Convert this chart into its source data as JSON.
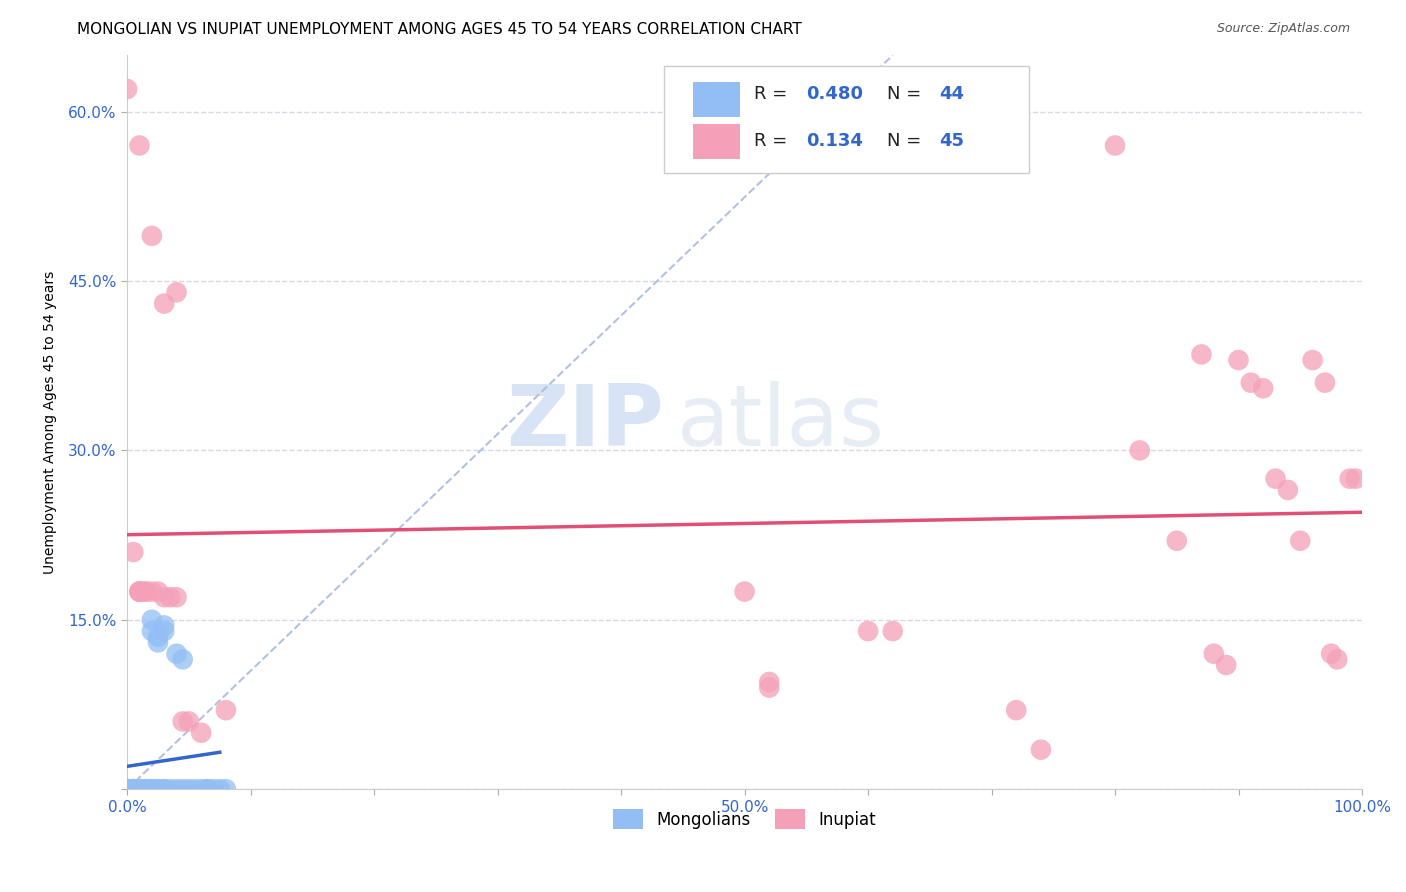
{
  "title": "MONGOLIAN VS INUPIAT UNEMPLOYMENT AMONG AGES 45 TO 54 YEARS CORRELATION CHART",
  "source": "Source: ZipAtlas.com",
  "ylabel": "Unemployment Among Ages 45 to 54 years",
  "xlim": [
    0,
    1.0
  ],
  "ylim": [
    0,
    0.65
  ],
  "xticks": [
    0.0,
    0.1,
    0.2,
    0.3,
    0.4,
    0.5,
    0.6,
    0.7,
    0.8,
    0.9,
    1.0
  ],
  "xticklabels": [
    "0.0%",
    "",
    "",
    "",
    "",
    "50.0%",
    "",
    "",
    "",
    "",
    "100.0%"
  ],
  "yticks": [
    0.0,
    0.15,
    0.3,
    0.45,
    0.6
  ],
  "yticklabels": [
    "",
    "15.0%",
    "30.0%",
    "45.0%",
    "60.0%"
  ],
  "mongolian_R": 0.48,
  "mongolian_N": 44,
  "inupiat_R": 0.134,
  "inupiat_N": 45,
  "mongolian_color": "#92bef5",
  "inupiat_color": "#f4a0b8",
  "mongolian_line_color": "#3366cc",
  "inupiat_line_color": "#e05075",
  "ref_line_color": "#aabbdd",
  "mongolian_scatter": [
    [
      0.0,
      0.0
    ],
    [
      0.0,
      0.0
    ],
    [
      0.0,
      0.0
    ],
    [
      0.0,
      0.0
    ],
    [
      0.0,
      0.0
    ],
    [
      0.0,
      0.0
    ],
    [
      0.0,
      0.0
    ],
    [
      0.0,
      0.0
    ],
    [
      0.0,
      0.0
    ],
    [
      0.0,
      0.0
    ],
    [
      0.005,
      0.0
    ],
    [
      0.005,
      0.0
    ],
    [
      0.005,
      0.0
    ],
    [
      0.005,
      0.0
    ],
    [
      0.01,
      0.0
    ],
    [
      0.01,
      0.0
    ],
    [
      0.01,
      0.0
    ],
    [
      0.015,
      0.0
    ],
    [
      0.015,
      0.0
    ],
    [
      0.02,
      0.0
    ],
    [
      0.02,
      0.0
    ],
    [
      0.025,
      0.0
    ],
    [
      0.025,
      0.0
    ],
    [
      0.03,
      0.0
    ],
    [
      0.03,
      0.0
    ],
    [
      0.035,
      0.0
    ],
    [
      0.04,
      0.0
    ],
    [
      0.045,
      0.0
    ],
    [
      0.02,
      0.14
    ],
    [
      0.02,
      0.15
    ],
    [
      0.025,
      0.13
    ],
    [
      0.03,
      0.14
    ],
    [
      0.025,
      0.135
    ],
    [
      0.03,
      0.145
    ],
    [
      0.04,
      0.12
    ],
    [
      0.045,
      0.115
    ],
    [
      0.05,
      0.0
    ],
    [
      0.055,
      0.0
    ],
    [
      0.06,
      0.0
    ],
    [
      0.065,
      0.0
    ],
    [
      0.07,
      0.0
    ],
    [
      0.075,
      0.0
    ],
    [
      0.065,
      0.0
    ],
    [
      0.08,
      0.0
    ]
  ],
  "inupiat_scatter": [
    [
      0.0,
      0.62
    ],
    [
      0.01,
      0.57
    ],
    [
      0.02,
      0.49
    ],
    [
      0.03,
      0.43
    ],
    [
      0.04,
      0.44
    ],
    [
      0.005,
      0.21
    ],
    [
      0.01,
      0.175
    ],
    [
      0.01,
      0.175
    ],
    [
      0.01,
      0.175
    ],
    [
      0.015,
      0.175
    ],
    [
      0.015,
      0.175
    ],
    [
      0.02,
      0.175
    ],
    [
      0.025,
      0.175
    ],
    [
      0.03,
      0.17
    ],
    [
      0.035,
      0.17
    ],
    [
      0.04,
      0.17
    ],
    [
      0.045,
      0.06
    ],
    [
      0.05,
      0.06
    ],
    [
      0.06,
      0.05
    ],
    [
      0.08,
      0.07
    ],
    [
      0.5,
      0.175
    ],
    [
      0.52,
      0.095
    ],
    [
      0.52,
      0.09
    ],
    [
      0.6,
      0.14
    ],
    [
      0.62,
      0.14
    ],
    [
      0.72,
      0.07
    ],
    [
      0.74,
      0.035
    ],
    [
      0.8,
      0.57
    ],
    [
      0.82,
      0.3
    ],
    [
      0.85,
      0.22
    ],
    [
      0.87,
      0.385
    ],
    [
      0.88,
      0.12
    ],
    [
      0.89,
      0.11
    ],
    [
      0.9,
      0.38
    ],
    [
      0.91,
      0.36
    ],
    [
      0.92,
      0.355
    ],
    [
      0.93,
      0.275
    ],
    [
      0.94,
      0.265
    ],
    [
      0.95,
      0.22
    ],
    [
      0.96,
      0.38
    ],
    [
      0.97,
      0.36
    ],
    [
      0.975,
      0.12
    ],
    [
      0.98,
      0.115
    ],
    [
      0.99,
      0.275
    ],
    [
      0.995,
      0.275
    ]
  ],
  "watermark_zip": "ZIP",
  "watermark_atlas": "atlas",
  "background_color": "#ffffff",
  "grid_color": "#d8d8e8",
  "title_fontsize": 11,
  "axis_label_fontsize": 10,
  "tick_fontsize": 11,
  "legend_fontsize": 13
}
